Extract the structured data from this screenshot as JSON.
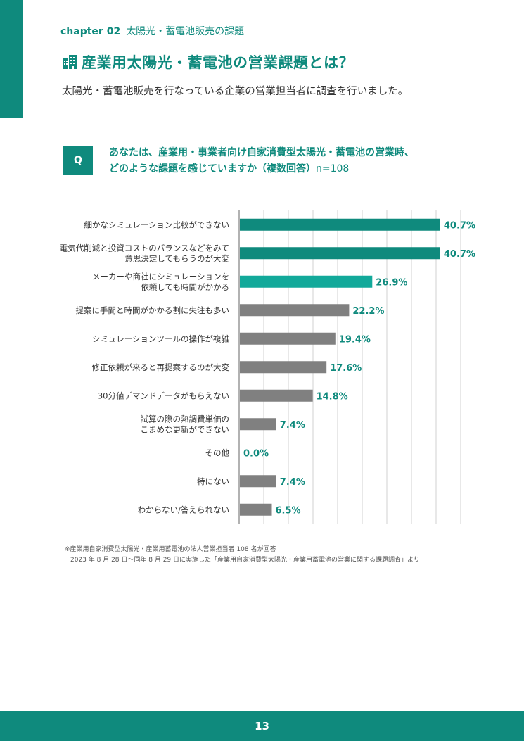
{
  "header": {
    "chapter_no": "chapter 02",
    "chapter_title": "太陽光・蓄電池販売の課題",
    "title": "産業用太陽光・蓄電池の営業課題とは？",
    "title_icon": "building-icon",
    "lead": "太陽光・蓄電池販売を行なっている企業の営業担当者に調査を行いました。"
  },
  "question": {
    "badge": "Q",
    "line1": "あなたは、産業用・事業者向け自家消費型太陽光・蓄電池の営業時、",
    "line2": "どのような課題を感じていますか（複数回答）",
    "n": "n=108"
  },
  "chart_data": {
    "type": "bar",
    "orientation": "horizontal",
    "categories": [
      [
        "細かなシミュレーション比較ができない"
      ],
      [
        "電気代削減と投資コストのバランスなどをみて",
        "意思決定してもらうのが大変"
      ],
      [
        "メーカーや商社にシミュレーションを",
        "依頼しても時間がかかる"
      ],
      [
        "提案に手間と時間がかかる割に失注も多い"
      ],
      [
        "シミュレーションツールの操作が複雑"
      ],
      [
        "修正依頼が来ると再提案するのが大変"
      ],
      [
        "30分値デマンドデータがもらえない"
      ],
      [
        "試算の際の熱調費単価の",
        "こまめな更新ができない"
      ],
      [
        "その他"
      ],
      [
        "特にない"
      ],
      [
        "わからない/答えられない"
      ]
    ],
    "values": [
      40.7,
      40.7,
      26.9,
      22.2,
      19.4,
      17.6,
      14.8,
      7.4,
      0.0,
      7.4,
      6.5
    ],
    "value_labels": [
      "40.7%",
      "40.7%",
      "26.9%",
      "22.2%",
      "19.4%",
      "17.6%",
      "14.8%",
      "7.4%",
      "0.0%",
      "7.4%",
      "6.5%"
    ],
    "bar_colors": [
      "#0f8a7d",
      "#0f8a7d",
      "#12a99a",
      "#808080",
      "#808080",
      "#808080",
      "#808080",
      "#808080",
      "#808080",
      "#808080",
      "#808080"
    ],
    "label_color": "#0f8a7d",
    "xlim": [
      0,
      45
    ],
    "grid": true
  },
  "notes": [
    "※産業用自家消費型太陽光・産業用蓄電池の法人営業担当者 108 名が回答",
    "2023 年 8 月 28 日〜同年 8 月 29 日に実施した「産業用自家消費型太陽光・産業用蓄電池の営業に関する課題調査」より"
  ],
  "footer": {
    "page_number": "13"
  }
}
